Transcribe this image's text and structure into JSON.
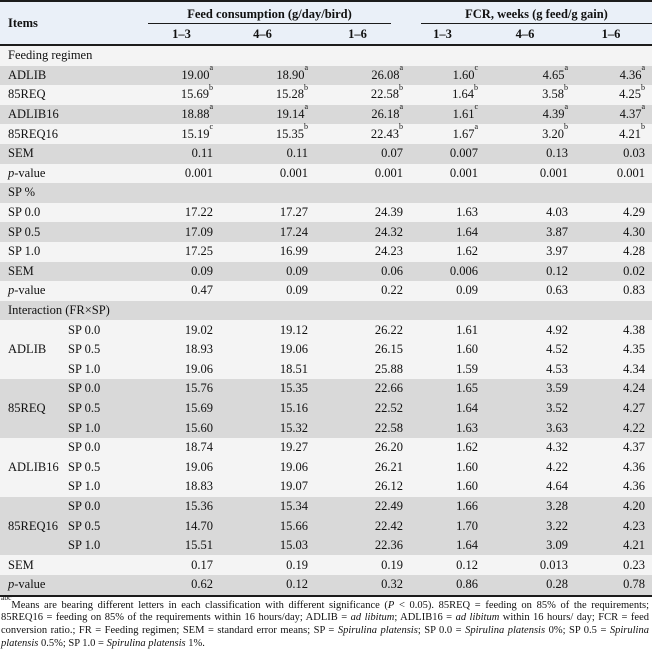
{
  "theme": {
    "header_bg": "#eaf0f8",
    "row_dark": "#d9d9d9",
    "row_light": "#f4f4f4",
    "border": "#1c1c1c"
  },
  "table": {
    "items_header": "Items",
    "column_groups": [
      {
        "label": "Feed consumption (g/day/bird)",
        "subcols": [
          "1–3",
          "4–6",
          "1–6"
        ]
      },
      {
        "label": "FCR, weeks (g feed/g gain)",
        "subcols": [
          "1–3",
          "4–6",
          "1–6"
        ]
      }
    ],
    "sections": [
      {
        "header": "Feeding regimen",
        "rows": [
          {
            "label": "ADLIB",
            "cells": [
              "19.00^a",
              "18.90^a",
              "26.08^a",
              "1.60^c",
              "4.65^a",
              "4.36^a"
            ]
          },
          {
            "label": "85REQ",
            "cells": [
              "15.69^b",
              "15.28^b",
              "22.58^b",
              "1.64^b",
              "3.58^b",
              "4.25^b"
            ]
          },
          {
            "label": "ADLIB16",
            "cells": [
              "18.88^a",
              "19.14^a",
              "26.18^a",
              "1.61^c",
              "4.39^a",
              "4.37^a"
            ]
          },
          {
            "label": "85REQ16",
            "cells": [
              "15.19^c",
              "15.35^b",
              "22.43^b",
              "1.67^a",
              "3.20^b",
              "4.21^b"
            ]
          },
          {
            "label": "SEM",
            "cells": [
              "0.11",
              "0.11",
              "0.07",
              "0.007",
              "0.13",
              "0.03"
            ]
          },
          {
            "label": "p-value",
            "il": true,
            "cells": [
              "0.001",
              "0.001",
              "0.001",
              "0.001",
              "0.001",
              "0.001"
            ]
          }
        ]
      },
      {
        "header": "SP %",
        "rows": [
          {
            "label": "SP 0.0",
            "cells": [
              "17.22",
              "17.27",
              "24.39",
              "1.63",
              "4.03",
              "4.29"
            ]
          },
          {
            "label": "SP 0.5",
            "cells": [
              "17.09",
              "17.24",
              "24.32",
              "1.64",
              "3.87",
              "4.30"
            ]
          },
          {
            "label": "SP 1.0",
            "cells": [
              "17.25",
              "16.99",
              "24.23",
              "1.62",
              "3.97",
              "4.28"
            ]
          },
          {
            "label": "SEM",
            "cells": [
              "0.09",
              "0.09",
              "0.06",
              "0.006",
              "0.12",
              "0.02"
            ]
          },
          {
            "label": "p-value",
            "il": true,
            "cells": [
              "0.47",
              "0.09",
              "0.22",
              "0.09",
              "0.63",
              "0.83"
            ]
          }
        ]
      },
      {
        "header": "Interaction (FR×SP)",
        "groups": [
          {
            "name": "ADLIB",
            "rows": [
              {
                "label": "SP 0.0",
                "cells": [
                  "19.02",
                  "19.12",
                  "26.22",
                  "1.61",
                  "4.92",
                  "4.38"
                ]
              },
              {
                "label": "SP 0.5",
                "cells": [
                  "18.93",
                  "19.06",
                  "26.15",
                  "1.60",
                  "4.52",
                  "4.35"
                ]
              },
              {
                "label": "SP 1.0",
                "cells": [
                  "19.06",
                  "18.51",
                  "25.88",
                  "1.59",
                  "4.53",
                  "4.34"
                ]
              }
            ]
          },
          {
            "name": "85REQ",
            "rows": [
              {
                "label": "SP 0.0",
                "cells": [
                  "15.76",
                  "15.35",
                  "22.66",
                  "1.65",
                  "3.59",
                  "4.24"
                ]
              },
              {
                "label": "SP 0.5",
                "cells": [
                  "15.69",
                  "15.16",
                  "22.52",
                  "1.64",
                  "3.52",
                  "4.27"
                ]
              },
              {
                "label": "SP 1.0",
                "cells": [
                  "15.60",
                  "15.32",
                  "22.58",
                  "1.63",
                  "3.63",
                  "4.22"
                ]
              }
            ]
          },
          {
            "name": "ADLIB16",
            "rows": [
              {
                "label": "SP 0.0",
                "cells": [
                  "18.74",
                  "19.27",
                  "26.20",
                  "1.62",
                  "4.32",
                  "4.37"
                ]
              },
              {
                "label": "SP 0.5",
                "cells": [
                  "19.06",
                  "19.06",
                  "26.21",
                  "1.60",
                  "4.22",
                  "4.36"
                ]
              },
              {
                "label": "SP 1.0",
                "cells": [
                  "18.83",
                  "19.07",
                  "26.12",
                  "1.60",
                  "4.64",
                  "4.36"
                ]
              }
            ]
          },
          {
            "name": "85REQ16",
            "rows": [
              {
                "label": "SP 0.0",
                "cells": [
                  "15.36",
                  "15.34",
                  "22.49",
                  "1.66",
                  "3.28",
                  "4.20"
                ]
              },
              {
                "label": "SP 0.5",
                "cells": [
                  "14.70",
                  "15.66",
                  "22.42",
                  "1.70",
                  "3.22",
                  "4.23"
                ]
              },
              {
                "label": "SP 1.0",
                "cells": [
                  "15.51",
                  "15.03",
                  "22.36",
                  "1.64",
                  "3.09",
                  "4.21"
                ]
              }
            ]
          }
        ],
        "rows": [
          {
            "label": "SEM",
            "cells": [
              "0.17",
              "0.19",
              "0.19",
              "0.12",
              "0.013",
              "0.23"
            ]
          },
          {
            "label": "p-value",
            "il": true,
            "cells": [
              "0.62",
              "0.12",
              "0.32",
              "0.86",
              "0.28",
              "0.78"
            ]
          }
        ]
      }
    ]
  },
  "footnote": {
    "segments": [
      {
        "t": "abc",
        "s": "sup"
      },
      {
        "t": "Means are bearing different letters in each classification with different significance ("
      },
      {
        "t": "P",
        "s": "i"
      },
      {
        "t": " < 0.05). 85REQ = feeding on 85% of the requirements; 85REQ16 = feeding on 85% of the requirements within 16 hours/day; ADLIB = "
      },
      {
        "t": "ad libitum",
        "s": "i"
      },
      {
        "t": "; ADLIB16 = "
      },
      {
        "t": "ad libitum",
        "s": "i"
      },
      {
        "t": " within 16 hours/ day; FCR = feed conversion ratio.; FR = Feeding regimen; SEM = standard error means; SP = "
      },
      {
        "t": "Spirulina platensis",
        "s": "i"
      },
      {
        "t": "; SP 0.0 = "
      },
      {
        "t": "Spirulina platensis",
        "s": "i"
      },
      {
        "t": " 0%; SP 0.5 = "
      },
      {
        "t": "Spirulina platensis",
        "s": "i"
      },
      {
        "t": " 0.5%; SP 1.0 = "
      },
      {
        "t": "Spirulina platensis",
        "s": "i"
      },
      {
        "t": " 1%."
      }
    ]
  }
}
